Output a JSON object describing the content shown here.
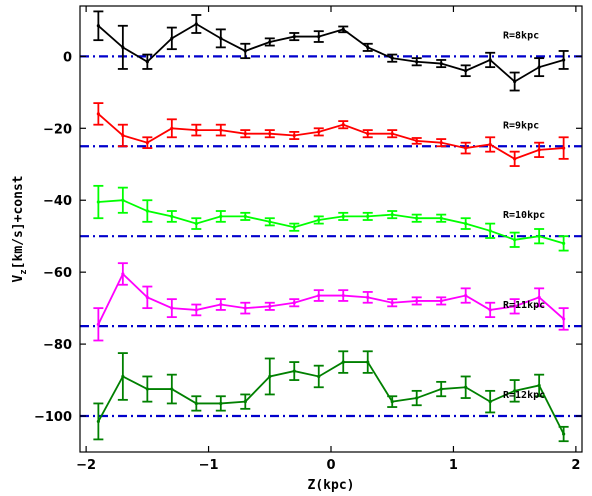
{
  "chart_data": {
    "type": "line",
    "xlabel": "Z(kpc)",
    "ylabel_main": "V",
    "ylabel_sub": "z",
    "ylabel_rest": "[km/s]+const",
    "xlim": [
      -2.05,
      2.05
    ],
    "ylim": [
      -110,
      14
    ],
    "xticks": [
      -2,
      -1,
      0,
      1,
      2
    ],
    "xtick_labels": [
      "−2",
      "−1",
      "0",
      "1",
      "2"
    ],
    "yticks": [
      0,
      -20,
      -40,
      -60,
      -80,
      -100
    ],
    "ytick_labels": [
      "0",
      "−20",
      "−40",
      "−60",
      "−80",
      "−100"
    ],
    "grid": false,
    "x": [
      -1.9,
      -1.7,
      -1.5,
      -1.3,
      -1.1,
      -0.9,
      -0.7,
      -0.5,
      -0.3,
      -0.1,
      0.1,
      0.3,
      0.5,
      0.7,
      0.9,
      1.1,
      1.3,
      1.5,
      1.7,
      1.9
    ],
    "series": [
      {
        "name": "R=8kpc",
        "color": "#000000",
        "baseline": 0,
        "values": [
          8.5,
          2.5,
          -1.5,
          5,
          9,
          5,
          1.5,
          4,
          5.5,
          5.5,
          7.5,
          2.5,
          -0.5,
          -1.5,
          -2,
          -4,
          -1,
          -7,
          -3,
          -1
        ],
        "errors": [
          4,
          6,
          2,
          3,
          2.5,
          2.5,
          2,
          1,
          1,
          1.5,
          0.8,
          1,
          1,
          1,
          1,
          1.5,
          2,
          2.5,
          2.5,
          2.5
        ]
      },
      {
        "name": "R=9kpc",
        "color": "#ff0000",
        "baseline": -25,
        "values": [
          -16,
          -22,
          -24,
          -20,
          -20.5,
          -20.5,
          -21.5,
          -21.5,
          -22,
          -21,
          -19,
          -21.5,
          -21.5,
          -23.5,
          -24,
          -25.5,
          -24.5,
          -28.5,
          -26,
          -25.5
        ],
        "errors": [
          3,
          3,
          1.5,
          2.5,
          1.5,
          1.5,
          1,
          1,
          1,
          1,
          1,
          1,
          1,
          0.8,
          1,
          1.5,
          2,
          2,
          2,
          3
        ]
      },
      {
        "name": "R=10kpc",
        "color": "#00ff00",
        "baseline": -50,
        "values": [
          -40.5,
          -40,
          -43,
          -44.5,
          -46.5,
          -44.5,
          -44.5,
          -46,
          -47.5,
          -45.5,
          -44.5,
          -44.5,
          -44,
          -45,
          -45,
          -46.5,
          -48.5,
          -51,
          -50,
          -52
        ],
        "errors": [
          4.5,
          3.5,
          3,
          1.5,
          1.5,
          1.5,
          1,
          1,
          1,
          1,
          1,
          1,
          1,
          1,
          1,
          1.5,
          2,
          2,
          2,
          2
        ]
      },
      {
        "name": "R=11kpc",
        "color": "#ff00ff",
        "baseline": -75,
        "values": [
          -74.5,
          -60.5,
          -67,
          -70,
          -70.5,
          -69,
          -70,
          -69.5,
          -68.5,
          -66.5,
          -66.5,
          -67,
          -68.5,
          -68,
          -68,
          -66.5,
          -70.5,
          -69.5,
          -67,
          -73
        ],
        "errors": [
          4.5,
          3,
          3,
          2.5,
          1.5,
          1.5,
          1.5,
          1,
          1,
          1.5,
          1.5,
          1.5,
          1,
          1,
          1,
          2,
          2,
          2,
          2.5,
          3
        ]
      },
      {
        "name": "R=12kpc",
        "color": "#008000",
        "baseline": -100,
        "values": [
          -101.5,
          -89,
          -92.5,
          -92.5,
          -96.5,
          -96.5,
          -96,
          -89,
          -87.5,
          -89,
          -85,
          -85,
          -96,
          -95,
          -92.5,
          -92,
          -96,
          -93,
          -91.5,
          -105
        ],
        "errors": [
          5,
          6.5,
          3.5,
          4,
          2,
          2,
          2,
          5,
          2.5,
          3,
          3,
          3,
          1.5,
          2,
          2,
          3,
          3,
          3,
          3,
          2
        ]
      }
    ]
  }
}
